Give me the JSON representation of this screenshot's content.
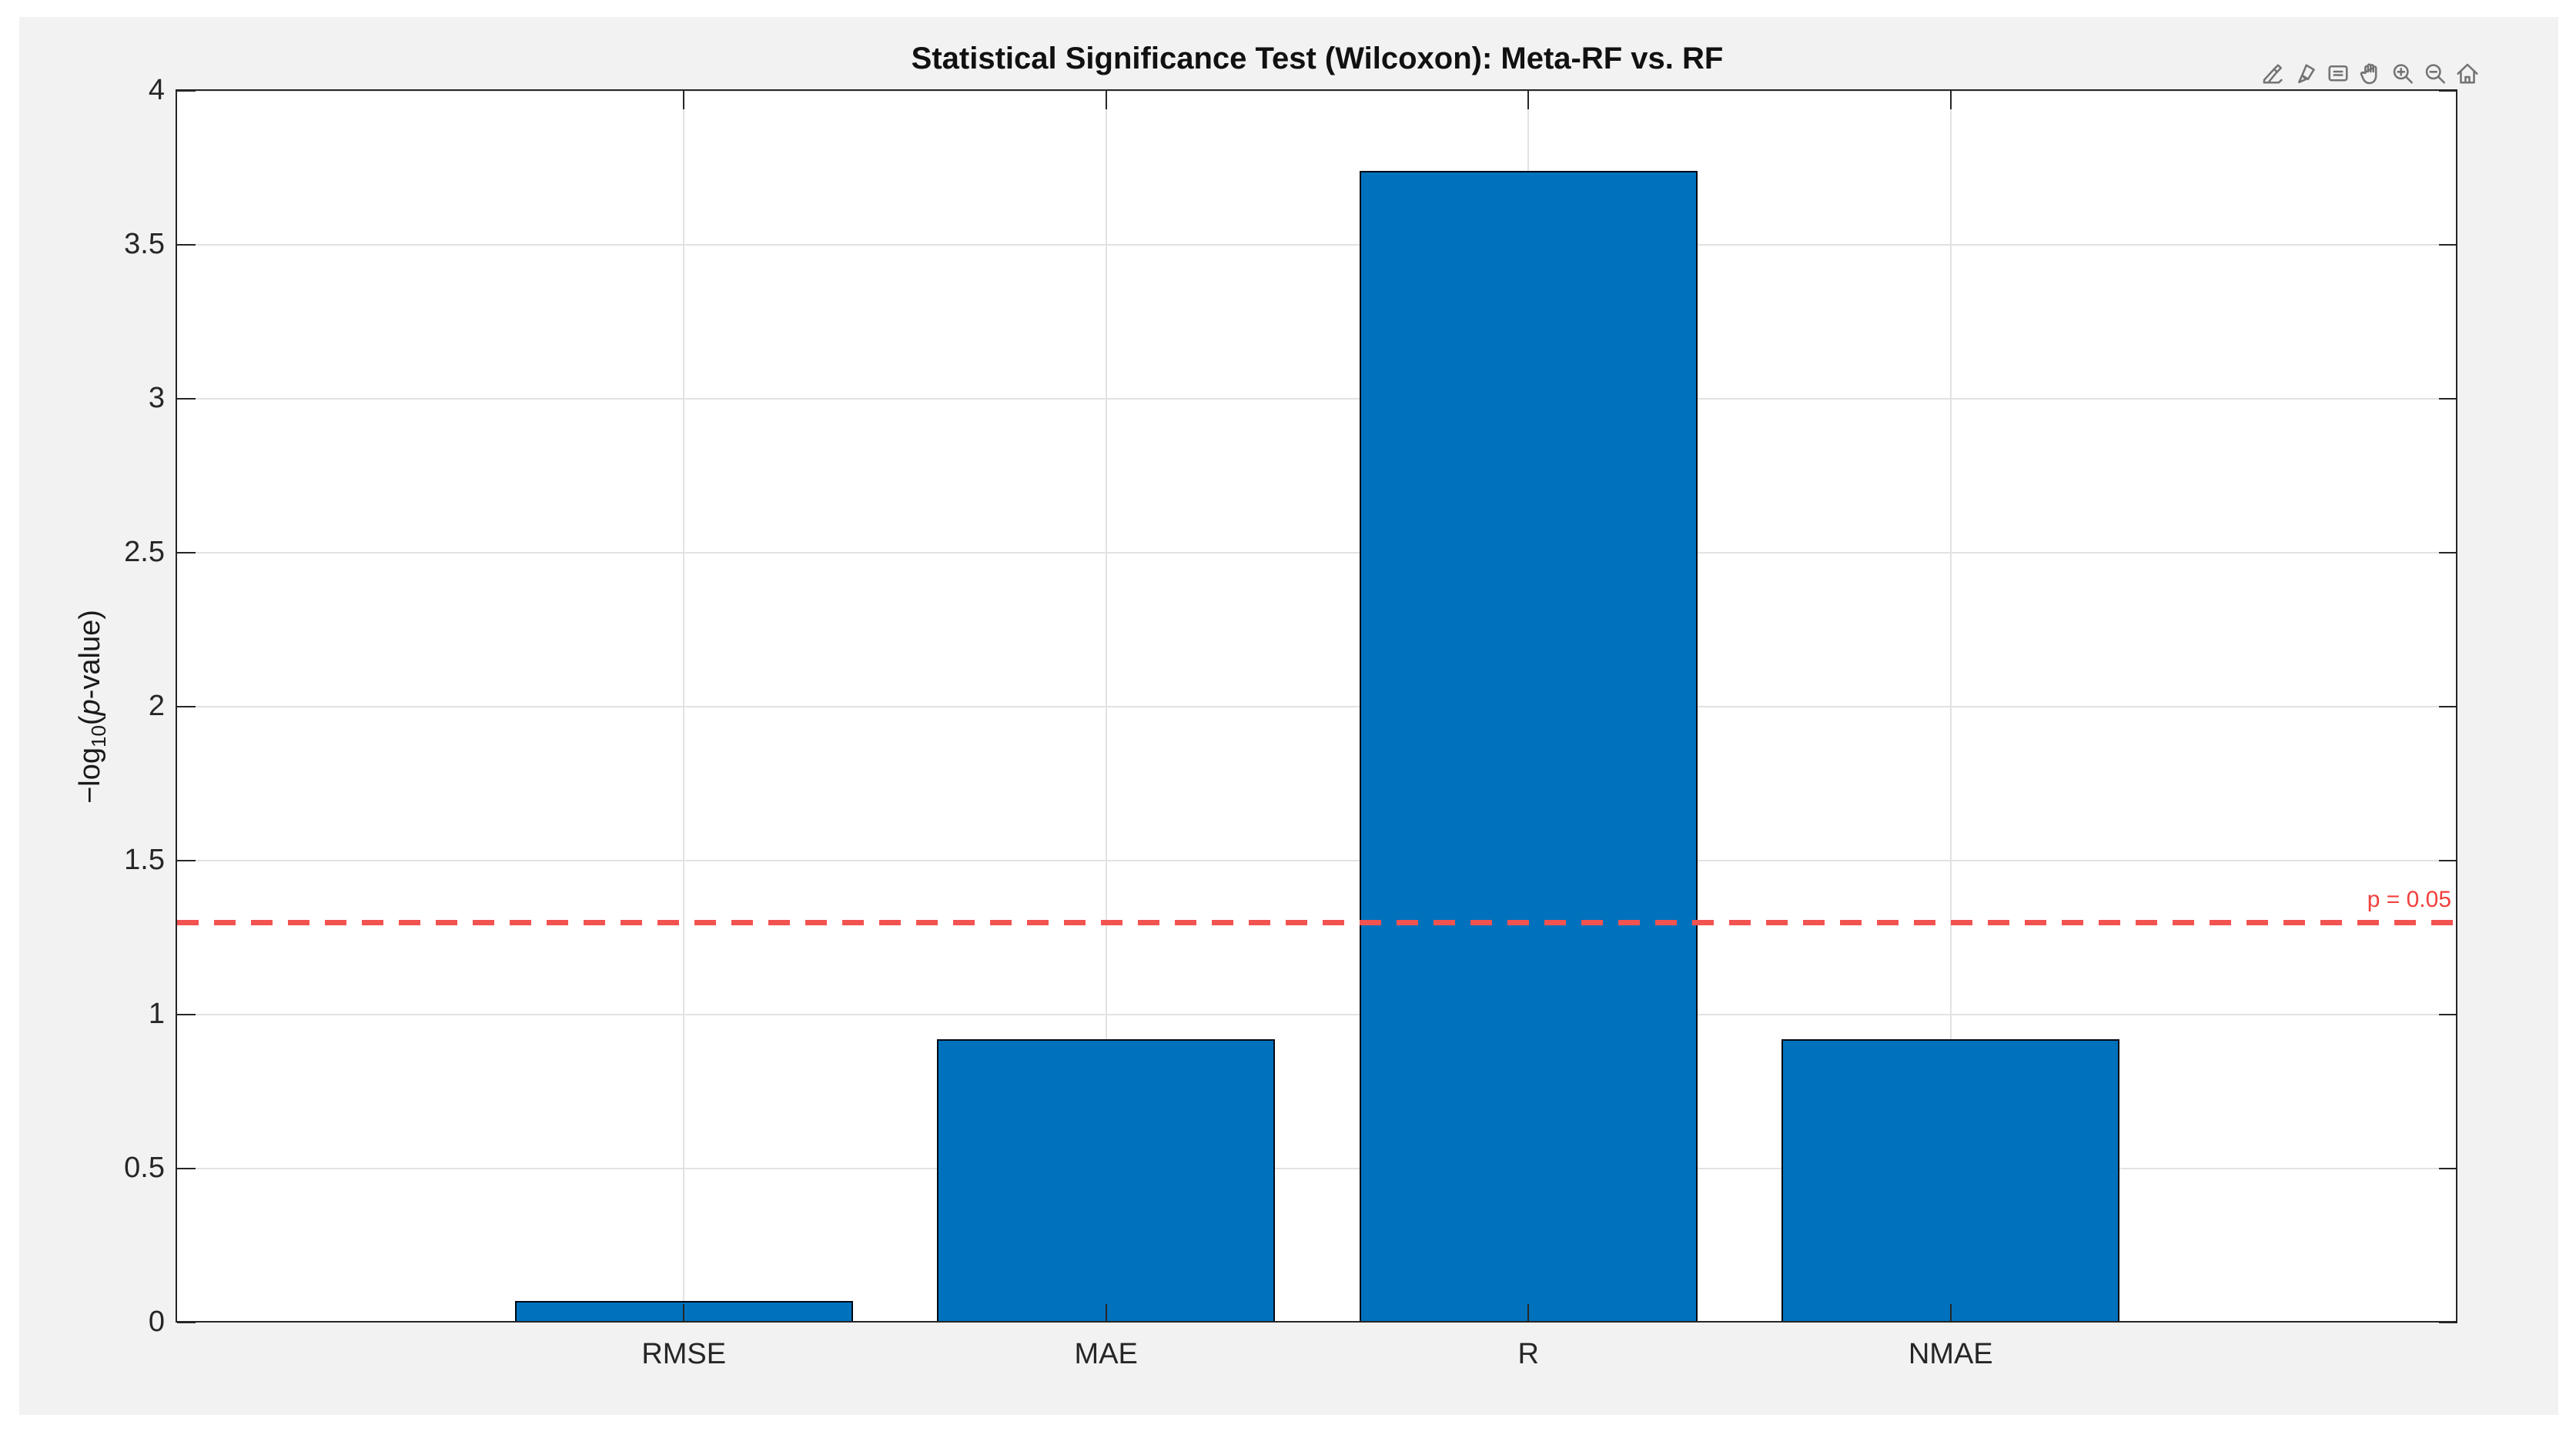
{
  "window": {
    "background_color": "#ffffff",
    "figure_background_color": "#f2f2f2"
  },
  "toolbar": {
    "icons": [
      {
        "name": "export-icon"
      },
      {
        "name": "brush-icon"
      },
      {
        "name": "datatip-icon"
      },
      {
        "name": "pan-icon"
      },
      {
        "name": "zoom-in-icon"
      },
      {
        "name": "zoom-out-icon"
      },
      {
        "name": "home-icon"
      }
    ]
  },
  "chart_data": {
    "type": "bar",
    "title": "Statistical Significance Test (Wilcoxon): Meta-RF vs. RF",
    "categories": [
      "RMSE",
      "MAE",
      "R",
      "NMAE"
    ],
    "values": [
      0.07,
      0.92,
      3.74,
      0.92
    ],
    "xlabel": "",
    "ylabel": "−log₁₀(p-value)",
    "ylabel_parts": {
      "prefix": "−log",
      "subscript": "10",
      "open": "(",
      "p": "p",
      "rest": "-value)"
    },
    "ylim": [
      0,
      4
    ],
    "yticks": [
      0,
      0.5,
      1,
      1.5,
      2,
      2.5,
      3,
      3.5,
      4
    ],
    "ytick_labels": [
      "0",
      "0.5",
      "1",
      "1.5",
      "2",
      "2.5",
      "3",
      "3.5",
      "4"
    ],
    "xlim": [
      -0.2,
      5.2
    ],
    "bar_relative_width": 0.8,
    "grid": true,
    "legend": "none",
    "bar_color": "#0072bd",
    "bar_edge_color": "#000000",
    "reference_line": {
      "y": 1.301,
      "label": "p = 0.05",
      "style": "dashed",
      "color": "#f25350"
    }
  }
}
